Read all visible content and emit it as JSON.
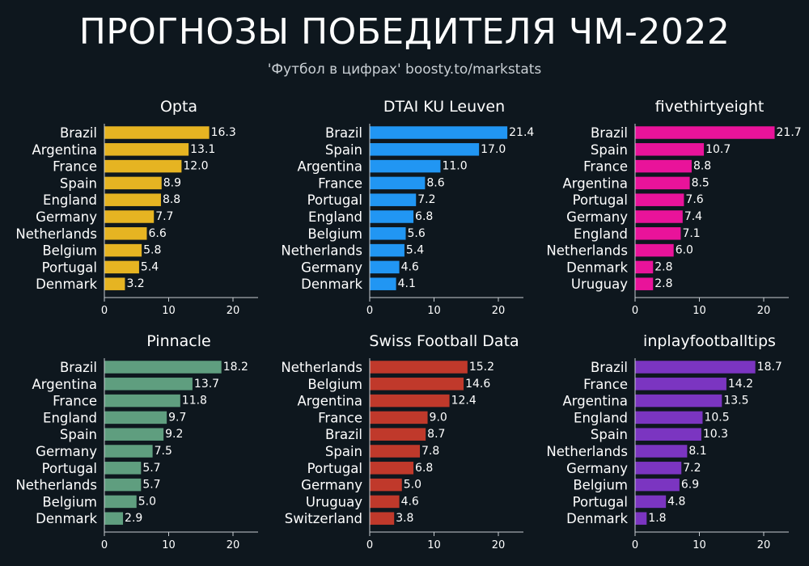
{
  "header": {
    "title": "ПРОГНОЗЫ ПОБЕДИТЕЛЯ ЧМ-2022",
    "subtitle": "'Футбол в цифрах' boosty.to/markstats"
  },
  "chart_data": [
    {
      "type": "bar",
      "orientation": "horizontal",
      "title": "Opta",
      "color": "#e6b422",
      "categories": [
        "Brazil",
        "Argentina",
        "France",
        "Spain",
        "England",
        "Germany",
        "Netherlands",
        "Belgium",
        "Portugal",
        "Denmark"
      ],
      "values": [
        16.3,
        13.1,
        12.0,
        8.9,
        8.8,
        7.7,
        6.6,
        5.8,
        5.4,
        3.2
      ],
      "value_labels": [
        "16.3",
        "13.1",
        "12.0",
        "8.9",
        "8.8",
        "7.7",
        "6.6",
        "5.8",
        "5.4",
        "3.2"
      ],
      "xticks": [
        "0",
        "10",
        "20"
      ],
      "xlim": [
        0,
        24
      ]
    },
    {
      "type": "bar",
      "orientation": "horizontal",
      "title": "DTAI KU Leuven",
      "color": "#2196f3",
      "categories": [
        "Brazil",
        "Spain",
        "Argentina",
        "France",
        "Portugal",
        "England",
        "Belgium",
        "Netherlands",
        "Germany",
        "Denmark"
      ],
      "values": [
        21.4,
        17.0,
        11.0,
        8.6,
        7.2,
        6.8,
        5.6,
        5.4,
        4.6,
        4.1
      ],
      "value_labels": [
        "21.4",
        "17.0",
        "11.0",
        "8.6",
        "7.2",
        "6.8",
        "5.6",
        "5.4",
        "4.6",
        "4.1"
      ],
      "xticks": [
        "0",
        "10",
        "20"
      ],
      "xlim": [
        0,
        24
      ]
    },
    {
      "type": "bar",
      "orientation": "horizontal",
      "title": "fivethirtyeight",
      "color": "#e9139a",
      "categories": [
        "Brazil",
        "Spain",
        "France",
        "Argentina",
        "Portugal",
        "Germany",
        "England",
        "Netherlands",
        "Denmark",
        "Uruguay"
      ],
      "values": [
        21.7,
        10.7,
        8.8,
        8.5,
        7.6,
        7.4,
        7.1,
        6.0,
        2.8,
        2.8
      ],
      "value_labels": [
        "21.7",
        "10.7",
        "8.8",
        "8.5",
        "7.6",
        "7.4",
        "7.1",
        "6.0",
        "2.8",
        "2.8"
      ],
      "xticks": [
        "0",
        "10",
        "20"
      ],
      "xlim": [
        0,
        24
      ]
    },
    {
      "type": "bar",
      "orientation": "horizontal",
      "title": "Pinnacle",
      "color": "#5f9e7f",
      "categories": [
        "Brazil",
        "Argentina",
        "France",
        "England",
        "Spain",
        "Germany",
        "Portugal",
        "Netherlands",
        "Belgium",
        "Denmark"
      ],
      "values": [
        18.2,
        13.7,
        11.8,
        9.7,
        9.2,
        7.5,
        5.7,
        5.7,
        5.0,
        2.9
      ],
      "value_labels": [
        "18.2",
        "13.7",
        "11.8",
        "9.7",
        "9.2",
        "7.5",
        "5.7",
        "5.7",
        "5.0",
        "2.9"
      ],
      "xticks": [
        "0",
        "10",
        "20"
      ],
      "xlim": [
        0,
        24
      ]
    },
    {
      "type": "bar",
      "orientation": "horizontal",
      "title": "Swiss Football Data",
      "color": "#c0392b",
      "categories": [
        "Netherlands",
        "Belgium",
        "Argentina",
        "France",
        "Brazil",
        "Spain",
        "Portugal",
        "Germany",
        "Uruguay",
        "Switzerland"
      ],
      "values": [
        15.2,
        14.6,
        12.4,
        9.0,
        8.7,
        7.8,
        6.8,
        5.0,
        4.6,
        3.8
      ],
      "value_labels": [
        "15.2",
        "14.6",
        "12.4",
        "9.0",
        "8.7",
        "7.8",
        "6.8",
        "5.0",
        "4.6",
        "3.8"
      ],
      "xticks": [
        "0",
        "10",
        "20"
      ],
      "xlim": [
        0,
        24
      ]
    },
    {
      "type": "bar",
      "orientation": "horizontal",
      "title": "inplayfootballtips",
      "color": "#7b35c1",
      "categories": [
        "Brazil",
        "France",
        "Argentina",
        "England",
        "Spain",
        "Netherlands",
        "Germany",
        "Belgium",
        "Portugal",
        "Denmark"
      ],
      "values": [
        18.7,
        14.2,
        13.5,
        10.5,
        10.3,
        8.1,
        7.2,
        6.9,
        4.8,
        1.8
      ],
      "value_labels": [
        "18.7",
        "14.2",
        "13.5",
        "10.5",
        "10.3",
        "8.1",
        "7.2",
        "6.9",
        "4.8",
        "1.8"
      ],
      "xticks": [
        "0",
        "10",
        "20"
      ],
      "xlim": [
        0,
        24
      ]
    }
  ]
}
